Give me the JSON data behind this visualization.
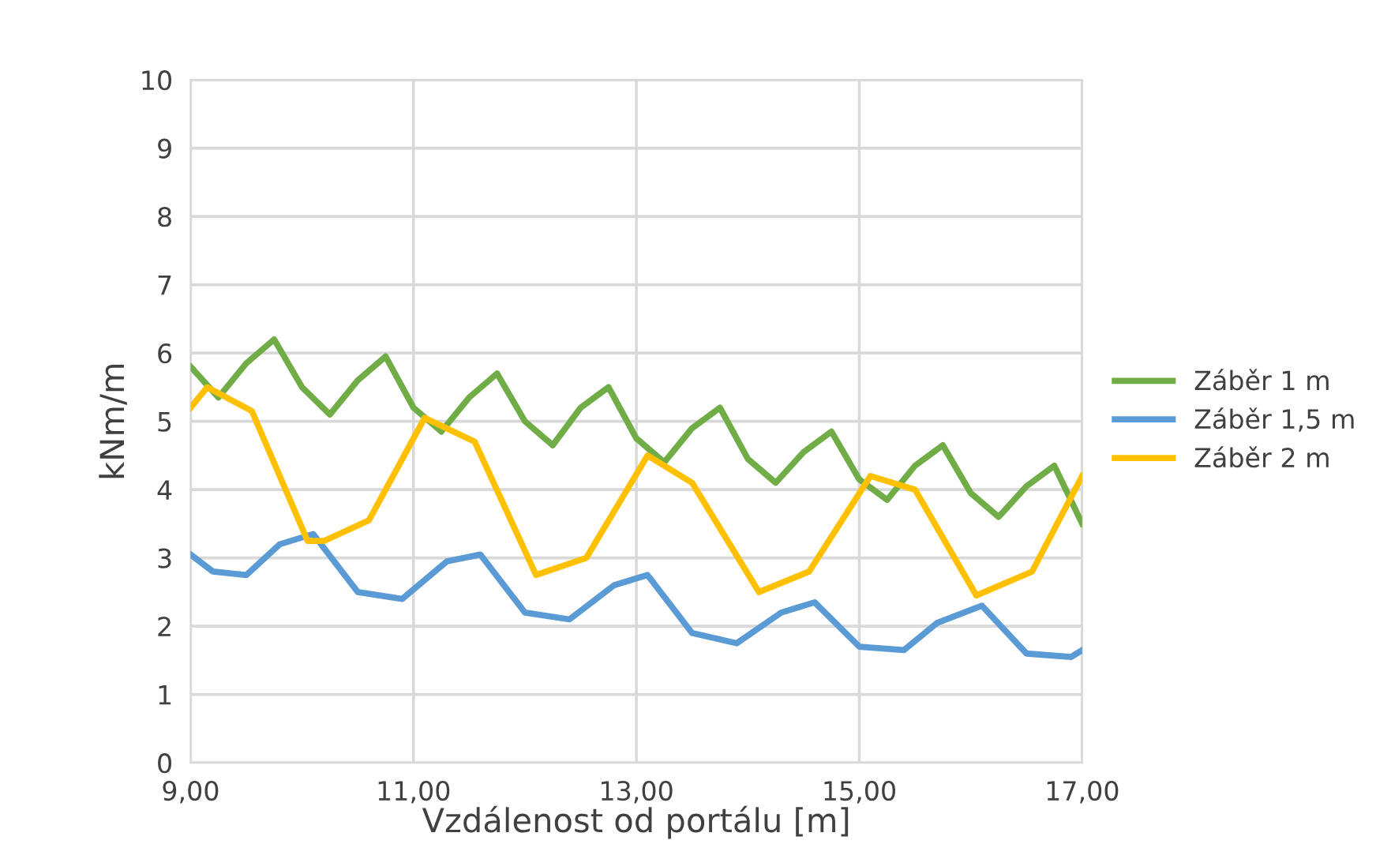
{
  "chart_data": {
    "type": "line",
    "xlabel": "Vzdálenost od portálu [m]",
    "ylabel": "kNm/m",
    "xlim": [
      9,
      17
    ],
    "ylim": [
      0,
      10
    ],
    "xticks": [
      {
        "value": 9,
        "label": "9,00"
      },
      {
        "value": 11,
        "label": "11,00"
      },
      {
        "value": 13,
        "label": "13,00"
      },
      {
        "value": 15,
        "label": "15,00"
      },
      {
        "value": 17,
        "label": "17,00"
      }
    ],
    "yticks": [
      0,
      1,
      2,
      3,
      4,
      5,
      6,
      7,
      8,
      9,
      10
    ],
    "grid": true,
    "legend": "right",
    "marker": "none",
    "line_style": "solid",
    "series": [
      {
        "name": "Záběr 1 m",
        "color": "#70ad47",
        "x": [
          9.0,
          9.25,
          9.5,
          9.75,
          10.0,
          10.25,
          10.5,
          10.75,
          11.0,
          11.25,
          11.5,
          11.75,
          12.0,
          12.25,
          12.5,
          12.75,
          13.0,
          13.25,
          13.5,
          13.75,
          14.0,
          14.25,
          14.5,
          14.75,
          15.0,
          15.25,
          15.5,
          15.75,
          16.0,
          16.25,
          16.5,
          16.75,
          17.0
        ],
        "values": [
          5.8,
          5.35,
          5.85,
          6.2,
          5.5,
          5.1,
          5.6,
          5.95,
          5.2,
          4.85,
          5.35,
          5.7,
          5.0,
          4.65,
          5.2,
          5.5,
          4.75,
          4.4,
          4.9,
          5.2,
          4.45,
          4.1,
          4.55,
          4.85,
          4.15,
          3.85,
          4.35,
          4.65,
          3.95,
          3.6,
          4.05,
          4.35,
          3.5
        ]
      },
      {
        "name": "Záběr 1,5 m",
        "color": "#5b9bd5",
        "x": [
          9.0,
          9.2,
          9.5,
          9.8,
          10.1,
          10.5,
          10.9,
          11.3,
          11.6,
          12.0,
          12.4,
          12.8,
          13.1,
          13.5,
          13.9,
          14.3,
          14.6,
          15.0,
          15.4,
          15.7,
          16.1,
          16.5,
          16.9,
          17.0
        ],
        "values": [
          3.05,
          2.8,
          2.75,
          3.2,
          3.35,
          2.5,
          2.4,
          2.95,
          3.05,
          2.2,
          2.1,
          2.6,
          2.75,
          1.9,
          1.75,
          2.2,
          2.35,
          1.7,
          1.65,
          2.05,
          2.3,
          1.6,
          1.55,
          1.65
        ]
      },
      {
        "name": "Záběr 2 m",
        "color": "#ffc000",
        "x": [
          9.0,
          9.15,
          9.55,
          10.05,
          10.2,
          10.6,
          11.1,
          11.55,
          12.1,
          12.55,
          13.1,
          13.5,
          14.1,
          14.55,
          15.1,
          15.5,
          16.05,
          16.55,
          17.0
        ],
        "values": [
          5.2,
          5.5,
          5.15,
          3.25,
          3.25,
          3.55,
          5.05,
          4.7,
          2.75,
          3.0,
          4.5,
          4.1,
          2.5,
          2.8,
          4.2,
          4.0,
          2.45,
          2.8,
          4.2
        ]
      }
    ]
  }
}
